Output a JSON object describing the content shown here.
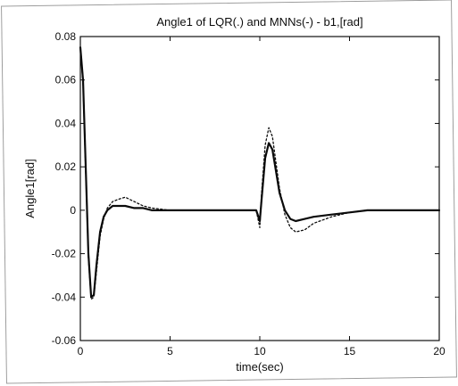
{
  "chart_data": {
    "type": "line",
    "title": "Angle1 of LQR(.) and MNNs(-) - b1,[rad]",
    "xlabel": "time(sec)",
    "ylabel": "Angle1[rad]",
    "xlim": [
      0,
      20
    ],
    "ylim": [
      -0.06,
      0.08
    ],
    "xticks": [
      "0",
      "5",
      "10",
      "15",
      "20"
    ],
    "yticks": [
      "0.08",
      "0.06",
      "0.04",
      "0.02",
      "0",
      "-0.02",
      "-0.04",
      "-0.06"
    ],
    "grid": false,
    "legend": "none",
    "series": [
      {
        "style": "solid",
        "color": "#111111",
        "x": [
          0,
          0.15,
          0.3,
          0.45,
          0.6,
          0.75,
          0.9,
          1.1,
          1.3,
          1.5,
          1.8,
          2.1,
          2.5,
          3,
          3.5,
          4,
          5,
          6,
          7,
          8,
          9,
          9.5,
          9.8,
          10,
          10.1,
          10.3,
          10.5,
          10.7,
          10.9,
          11.1,
          11.4,
          11.7,
          12,
          12.5,
          13,
          14,
          15,
          16,
          17,
          18,
          19,
          20
        ],
        "y": [
          0.075,
          0.06,
          0.02,
          -0.02,
          -0.04,
          -0.039,
          -0.025,
          -0.01,
          -0.003,
          0.0,
          0.002,
          0.002,
          0.002,
          0.001,
          0.001,
          0.0,
          0.0,
          0.0,
          0.0,
          0.0,
          0.0,
          0.0,
          0.0,
          -0.005,
          0.005,
          0.024,
          0.031,
          0.028,
          0.018,
          0.008,
          0.0,
          -0.004,
          -0.005,
          -0.004,
          -0.003,
          -0.002,
          -0.001,
          0.0,
          0.0,
          0.0,
          0.0,
          0.0
        ]
      },
      {
        "style": "dotted",
        "color": "#111111",
        "x": [
          0,
          0.15,
          0.3,
          0.45,
          0.6,
          0.75,
          0.9,
          1.1,
          1.3,
          1.5,
          1.8,
          2.1,
          2.5,
          3,
          3.5,
          4,
          5,
          6,
          7,
          8,
          9,
          9.5,
          9.8,
          10,
          10.1,
          10.3,
          10.5,
          10.7,
          10.9,
          11.1,
          11.4,
          11.7,
          12,
          12.5,
          13,
          14,
          15,
          16,
          17,
          18,
          19,
          20
        ],
        "y": [
          0.075,
          0.058,
          0.018,
          -0.022,
          -0.041,
          -0.04,
          -0.028,
          -0.012,
          -0.004,
          0.001,
          0.004,
          0.005,
          0.006,
          0.004,
          0.002,
          0.001,
          0.0,
          0.0,
          0.0,
          0.0,
          0.0,
          0.0,
          0.0,
          -0.008,
          0.008,
          0.03,
          0.038,
          0.034,
          0.022,
          0.01,
          -0.002,
          -0.008,
          -0.01,
          -0.009,
          -0.006,
          -0.003,
          -0.001,
          0.0,
          0.0,
          0.0,
          0.0,
          0.0
        ]
      }
    ]
  }
}
